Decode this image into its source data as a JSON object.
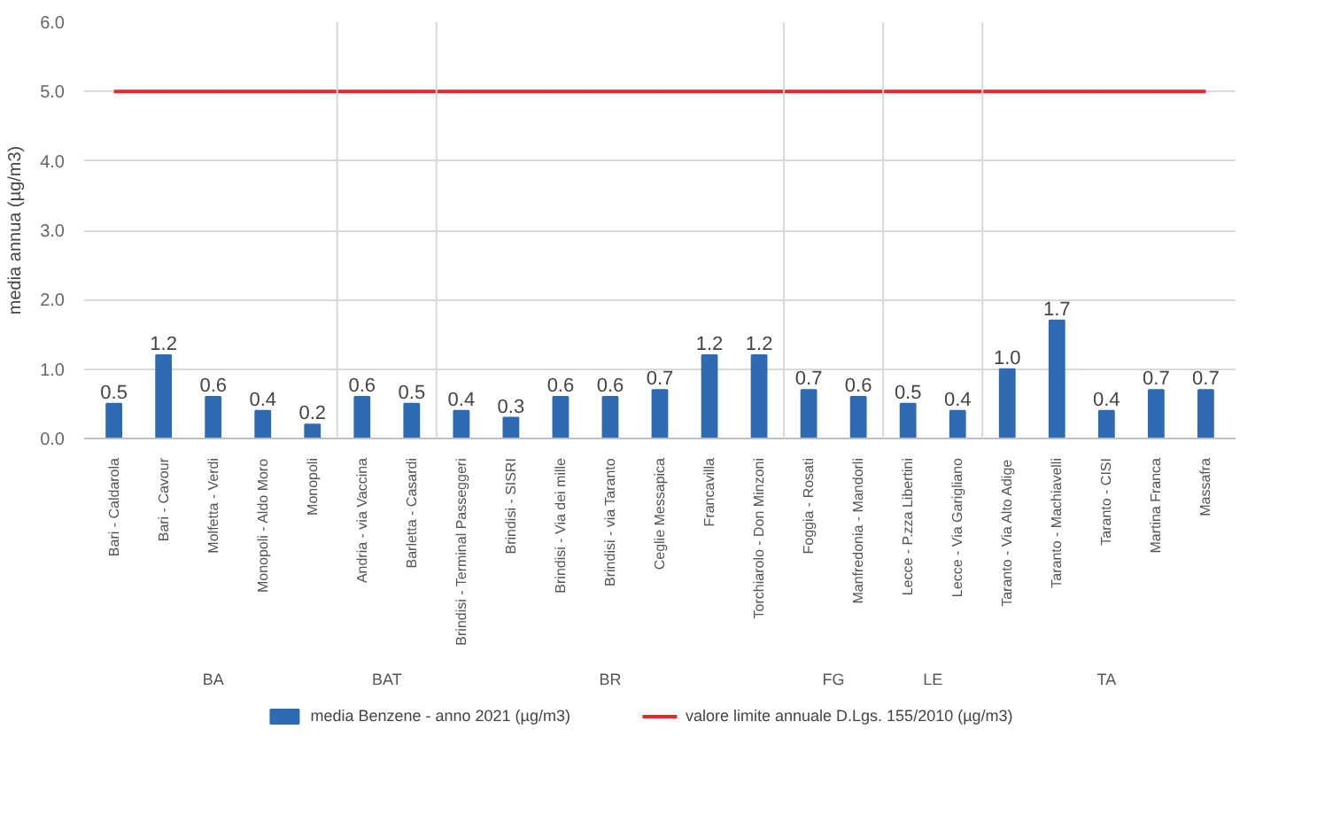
{
  "chart_data": {
    "type": "bar",
    "ylabel": "media annua (µg/m3)",
    "categories": [
      "Bari - Caldarola",
      "Bari - Cavour",
      "Molfetta - Verdi",
      "Monopoli - Aldo Moro",
      "Monopoli",
      "Andria - via Vaccina",
      "Barletta - Casardi",
      "Brindisi - Terminal Passeggeri",
      "Brindisi - SISRI",
      "Brindisi - Via dei mille",
      "Brindisi - via Taranto",
      "Ceglie Messapica",
      "Francavilla",
      "Torchiarolo - Don Minzoni",
      "Foggia - Rosati",
      "Manfredonia - Mandorli",
      "Lecce - P.zza Libertini",
      "Lecce - Via Garigliano",
      "Taranto - Via Alto Adige",
      "Taranto - Machiavelli",
      "Taranto - CISI",
      "Martina Franca",
      "Massafra"
    ],
    "series": [
      {
        "name": "media Benzene - anno 2021 (µg/m3)",
        "value_labels": [
          "0.5",
          "1.2",
          "0.6",
          "0.4",
          "0.2",
          "0.6",
          "0.5",
          "0.4",
          "0.3",
          "0.6",
          "0.6",
          "0.7",
          "1.2",
          "1.2",
          "0.7",
          "0.6",
          "0.5",
          "0.4",
          "1.0",
          "1.7",
          "0.4",
          "0.7",
          "0.7"
        ],
        "color": "#2e6bb3",
        "values": [
          0.5,
          1.2,
          0.6,
          0.4,
          0.2,
          0.6,
          0.5,
          0.4,
          0.3,
          0.6,
          0.6,
          0.7,
          1.2,
          1.2,
          0.7,
          0.6,
          0.5,
          0.4,
          1.0,
          1.7,
          0.4,
          0.7,
          0.7
        ]
      },
      {
        "name": "valore limite annuale D.Lgs. 155/2010 (µg/m3)",
        "type": "line",
        "color": "#e8262b",
        "values": [
          5.0,
          5.0,
          5.0,
          5.0,
          5.0,
          5.0,
          5.0,
          5.0,
          5.0,
          5.0,
          5.0,
          5.0,
          5.0,
          5.0,
          5.0,
          5.0,
          5.0,
          5.0,
          5.0,
          5.0,
          5.0,
          5.0,
          5.0
        ]
      }
    ],
    "annotations": [
      "BA",
      "BAT",
      "BR",
      "FG",
      "LE",
      "TA"
    ],
    "ylim": [
      0,
      6
    ],
    "yticks": [
      {
        "value": 0,
        "label": "0.0"
      },
      {
        "value": 1,
        "label": "1.0"
      },
      {
        "value": 2,
        "label": "2.0"
      },
      {
        "value": 3,
        "label": "3.0"
      },
      {
        "value": 4,
        "label": "4.0"
      },
      {
        "value": 5,
        "label": "5.0"
      },
      {
        "value": 6,
        "label": "6.0"
      }
    ],
    "grid": "y",
    "legend": "bottom"
  }
}
